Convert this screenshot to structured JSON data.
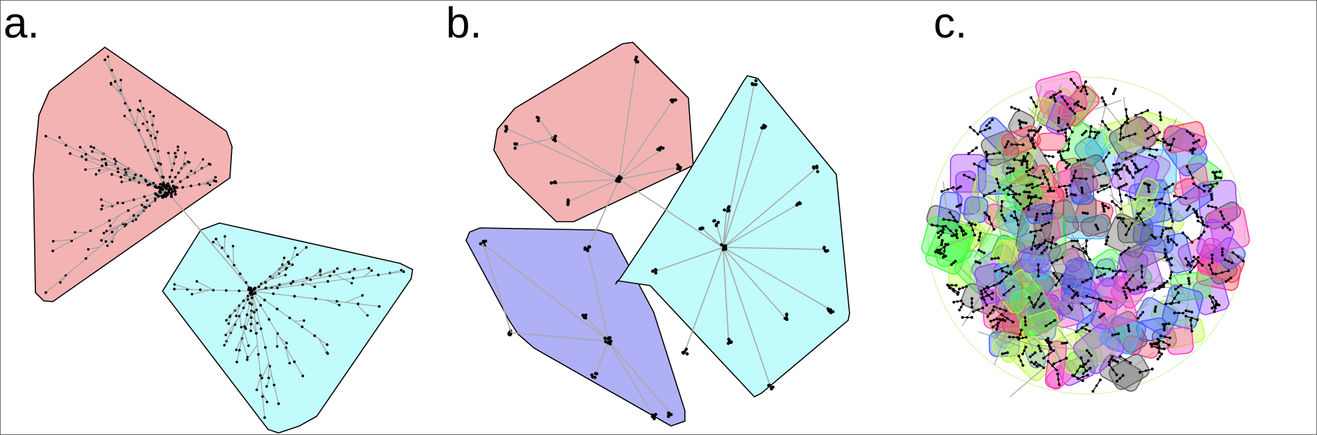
{
  "panels": [
    {
      "letter": "a.",
      "communities": 2,
      "community_colors": [
        "#f4b3b3",
        "#c2fbfb"
      ]
    },
    {
      "letter": "b.",
      "communities": 3,
      "community_colors": [
        "#f4b3b3",
        "#b0b0f6",
        "#c2fbfb"
      ]
    },
    {
      "letter": "c.",
      "community_colors": [
        "#ff40c0",
        "#4060ff",
        "#40ff40",
        "#c0ff40",
        "#40c0ff",
        "#ff4060",
        "#a040ff",
        "#606060"
      ]
    }
  ],
  "colors": {
    "border": "#6b6b6b",
    "node": "#000000",
    "edge": "#a8a8a8"
  }
}
